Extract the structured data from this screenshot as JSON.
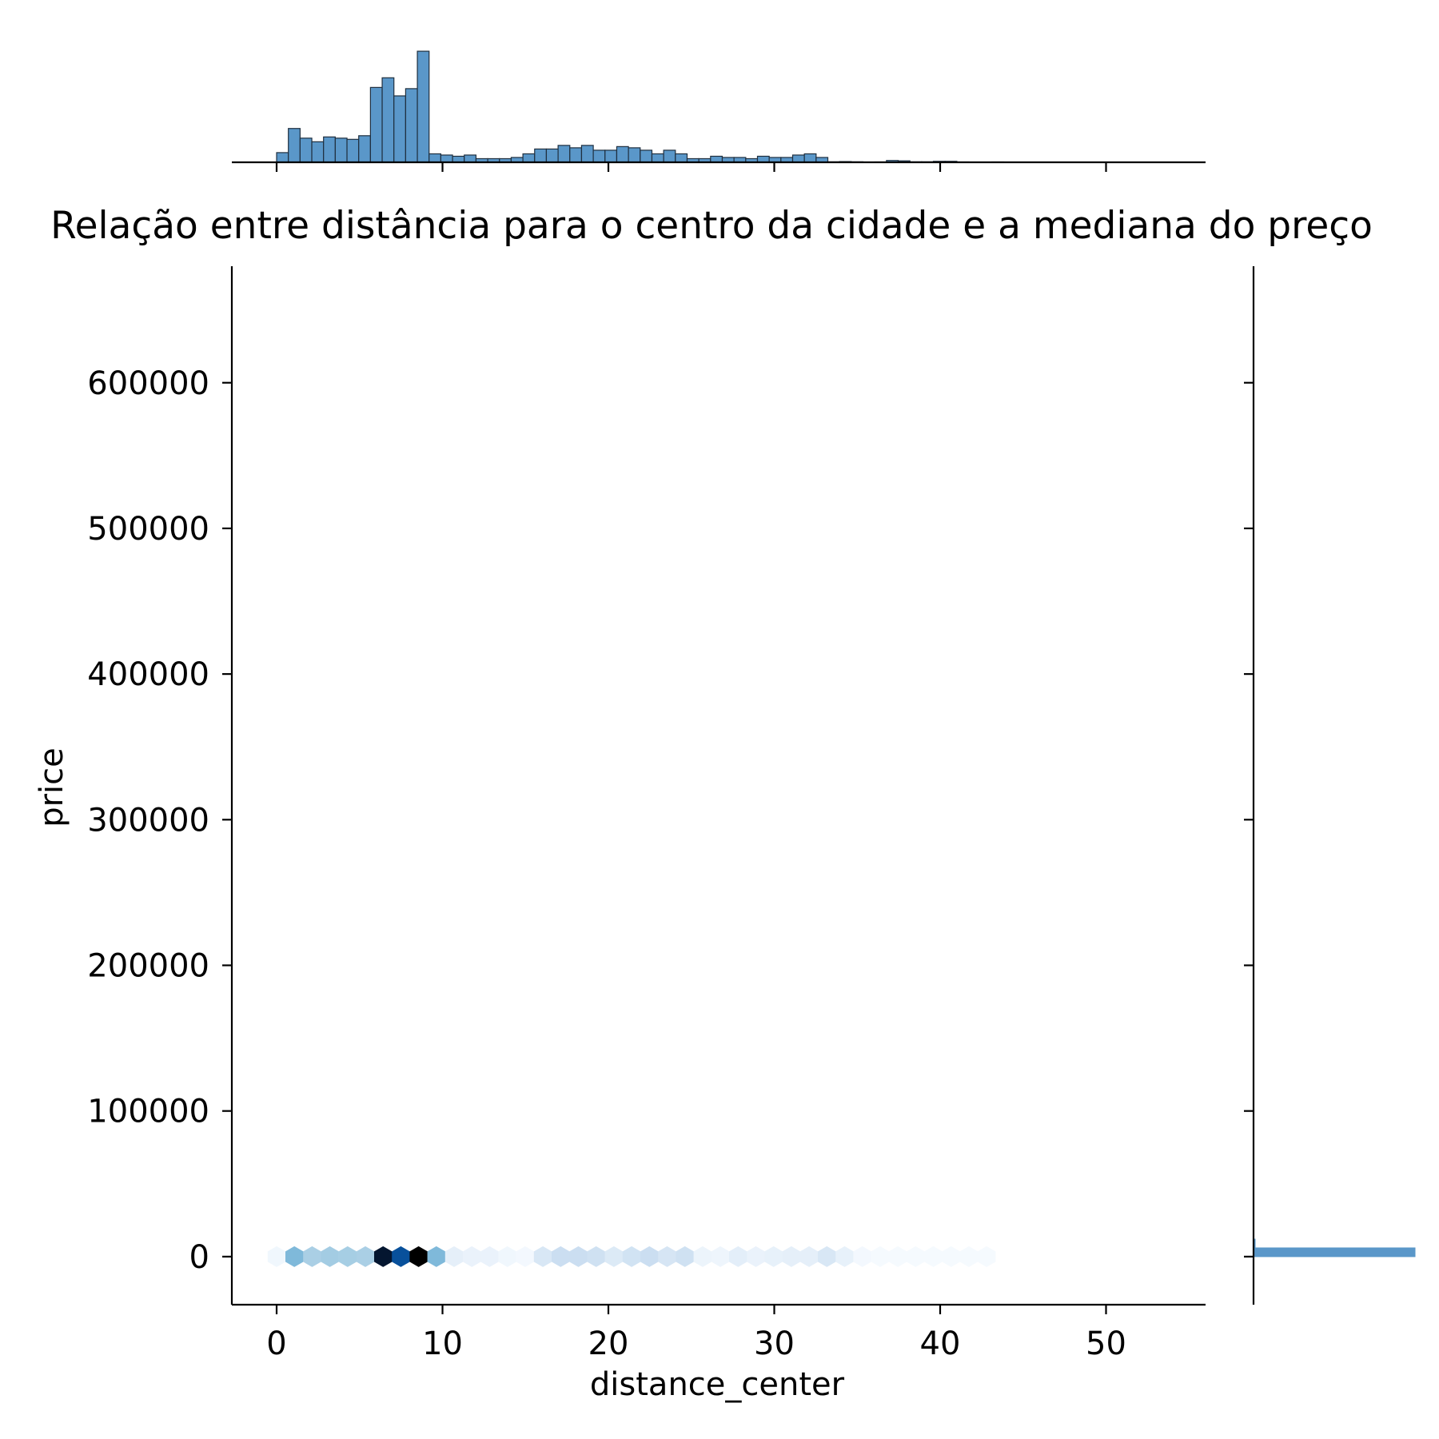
{
  "chart_data": {
    "type": "hexbin",
    "title": "Relação entre distância para o centro da cidade e a mediana do preço",
    "xlabel": "distance_center",
    "ylabel": "price",
    "xlim": [
      -2.7,
      56
    ],
    "ylim": [
      -33000,
      680000
    ],
    "x_ticks": [
      0,
      10,
      20,
      30,
      40,
      50
    ],
    "y_ticks": [
      0,
      100000,
      200000,
      300000,
      400000,
      500000,
      600000
    ],
    "grid": false,
    "colormap": "Blues",
    "colors": {
      "bar": "#5a97c9",
      "bar_edge": "#1f2f3f",
      "axis": "#000000",
      "dark": "#08306b",
      "max": "#000000"
    },
    "hexbin": [
      {
        "x": 0,
        "count": 3
      },
      {
        "x": 1.07,
        "count": 40
      },
      {
        "x": 2.14,
        "count": 30
      },
      {
        "x": 3.21,
        "count": 32
      },
      {
        "x": 4.28,
        "count": 31
      },
      {
        "x": 5.35,
        "count": 30
      },
      {
        "x": 6.42,
        "count": 95
      },
      {
        "x": 7.49,
        "count": 78
      },
      {
        "x": 8.56,
        "count": 100
      },
      {
        "x": 9.63,
        "count": 40
      },
      {
        "x": 10.7,
        "count": 8
      },
      {
        "x": 11.77,
        "count": 6
      },
      {
        "x": 12.84,
        "count": 6
      },
      {
        "x": 13.91,
        "count": 3
      },
      {
        "x": 14.98,
        "count": 2
      },
      {
        "x": 16.05,
        "count": 14
      },
      {
        "x": 17.12,
        "count": 20
      },
      {
        "x": 18.19,
        "count": 20
      },
      {
        "x": 19.26,
        "count": 18
      },
      {
        "x": 20.33,
        "count": 12
      },
      {
        "x": 21.4,
        "count": 17
      },
      {
        "x": 22.47,
        "count": 20
      },
      {
        "x": 23.54,
        "count": 15
      },
      {
        "x": 24.61,
        "count": 18
      },
      {
        "x": 25.68,
        "count": 5
      },
      {
        "x": 26.75,
        "count": 4
      },
      {
        "x": 27.82,
        "count": 9
      },
      {
        "x": 28.89,
        "count": 6
      },
      {
        "x": 29.96,
        "count": 7
      },
      {
        "x": 31.03,
        "count": 8
      },
      {
        "x": 32.1,
        "count": 8
      },
      {
        "x": 33.17,
        "count": 14
      },
      {
        "x": 34.24,
        "count": 7
      },
      {
        "x": 35.31,
        "count": 2
      },
      {
        "x": 36.38,
        "count": 1
      },
      {
        "x": 37.45,
        "count": 1
      },
      {
        "x": 38.52,
        "count": 1
      },
      {
        "x": 39.59,
        "count": 1
      },
      {
        "x": 40.66,
        "count": 1
      },
      {
        "x": 41.73,
        "count": 1
      },
      {
        "x": 42.8,
        "count": 1
      }
    ],
    "x_histogram": {
      "bin_start": 0,
      "bin_width": 0.707,
      "counts": [
        8,
        28,
        20,
        17,
        21,
        20,
        19,
        22,
        62,
        70,
        55,
        61,
        92,
        7,
        6,
        5,
        6,
        3,
        3,
        3,
        4,
        7,
        11,
        11,
        14,
        12,
        14,
        10,
        10,
        13,
        12,
        10,
        7,
        10,
        7,
        3,
        3,
        5,
        4,
        4,
        3,
        5,
        4,
        4,
        6,
        7,
        4,
        0.4,
        0.6,
        0.4,
        0.2,
        0.3,
        1.5,
        1.2,
        0.4,
        0.4,
        0.8,
        0.8,
        0.3,
        0.2,
        0.2,
        0.3,
        0.1,
        0.1,
        0.1,
        0.1,
        0.1,
        0.1,
        0.2
      ],
      "y_max": 100
    },
    "y_histogram": {
      "bin_start": 0,
      "bin_width": 6000,
      "counts": [
        100,
        1,
        0.2
      ],
      "x_max": 100
    }
  }
}
